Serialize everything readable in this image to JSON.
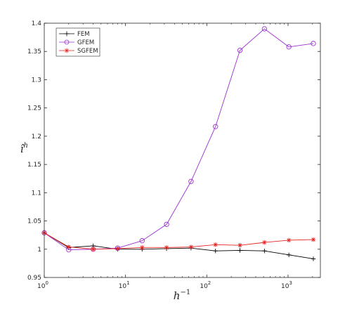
{
  "chart_data": {
    "type": "line",
    "xscale": "log",
    "xlim": [
      1,
      2500
    ],
    "ylim": [
      0.95,
      1.4
    ],
    "xlabel": "h^{-1}",
    "ylabel": "î^h",
    "legend_position": "top-left",
    "grid": false,
    "x_ticks": [
      {
        "value": 1,
        "base": "10",
        "exp": "0"
      },
      {
        "value": 10,
        "base": "10",
        "exp": "1"
      },
      {
        "value": 100,
        "base": "10",
        "exp": "2"
      },
      {
        "value": 1000,
        "base": "10",
        "exp": "3"
      }
    ],
    "y_ticks": [
      0.95,
      1,
      1.05,
      1.1,
      1.15,
      1.2,
      1.25,
      1.3,
      1.35,
      1.4
    ],
    "y_tick_labels": [
      "0.95",
      "1",
      "1.05",
      "1.1",
      "1.15",
      "1.2",
      "1.25",
      "1.3",
      "1.35",
      "1.4"
    ],
    "x": [
      1,
      2,
      4,
      8,
      16,
      32,
      64,
      128,
      256,
      512,
      1024,
      2048
    ],
    "series": [
      {
        "name": "FEM",
        "color": "#000000",
        "marker": "plus",
        "values": [
          1.029,
          1.003,
          1.006,
          1.0,
          1.0,
          1.001,
          1.002,
          0.997,
          0.998,
          0.997,
          0.99,
          0.983
        ]
      },
      {
        "name": "GFEM",
        "color": "#9B30D0",
        "marker": "circle",
        "values": [
          1.029,
          0.999,
          1.0,
          1.002,
          1.015,
          1.044,
          1.12,
          1.217,
          1.352,
          1.39,
          1.358,
          1.364
        ]
      },
      {
        "name": "SGFEM",
        "color": "#E52420",
        "marker": "asterisk",
        "values": [
          1.029,
          1.004,
          1.0,
          1.001,
          1.003,
          1.003,
          1.004,
          1.008,
          1.007,
          1.012,
          1.016,
          1.017
        ]
      }
    ]
  }
}
